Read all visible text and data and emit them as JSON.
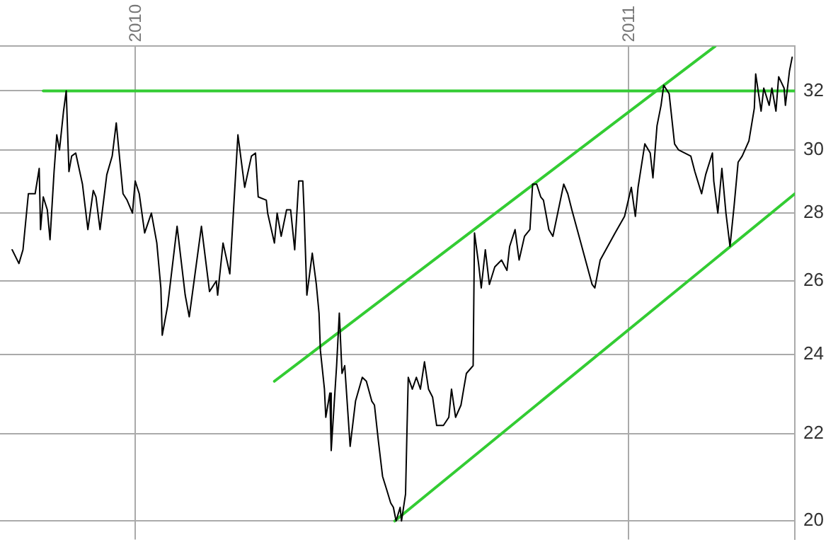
{
  "chart_data": {
    "type": "line",
    "log": "y",
    "grid": true,
    "marker": "none",
    "line_style": "solid",
    "xlim": [
      "2009-09-23",
      "2011-05-04"
    ],
    "xticks": [
      {
        "value": "2010-01-01",
        "label": "2010"
      },
      {
        "value": "2011-01-01",
        "label": "2011"
      }
    ],
    "ylim": [
      19.6,
      33.6
    ],
    "yticks": [
      20,
      22,
      24,
      26,
      28,
      30,
      32
    ],
    "series": [
      {
        "color": "#000000",
        "x": [
          "2009-10-02",
          "2009-10-07",
          "2009-10-10",
          "2009-10-14",
          "2009-10-19",
          "2009-10-22",
          "2009-10-23",
          "2009-10-25",
          "2009-10-28",
          "2009-10-30",
          "2009-11-02",
          "2009-11-04",
          "2009-11-06",
          "2009-11-09",
          "2009-11-11",
          "2009-11-13",
          "2009-11-15",
          "2009-11-18",
          "2009-11-23",
          "2009-11-27",
          "2009-12-01",
          "2009-12-03",
          "2009-12-06",
          "2009-12-11",
          "2009-12-15",
          "2009-12-18",
          "2009-12-23",
          "2009-12-26",
          "2009-12-30",
          "2010-01-01",
          "2010-01-04",
          "2010-01-08",
          "2010-01-13",
          "2010-01-17",
          "2010-01-20",
          "2010-01-21",
          "2010-01-25",
          "2010-02-01",
          "2010-02-07",
          "2010-02-10",
          "2010-02-19",
          "2010-02-25",
          "2010-03-02",
          "2010-03-03",
          "2010-03-07",
          "2010-03-12",
          "2010-03-18",
          "2010-03-23",
          "2010-03-28",
          "2010-03-31",
          "2010-04-02",
          "2010-04-08",
          "2010-04-09",
          "2010-04-14",
          "2010-04-16",
          "2010-04-19",
          "2010-04-23",
          "2010-04-26",
          "2010-04-29",
          "2010-05-02",
          "2010-05-05",
          "2010-05-06",
          "2010-05-08",
          "2010-05-12",
          "2010-05-15",
          "2010-05-17",
          "2010-05-18",
          "2010-05-21",
          "2010-05-22",
          "2010-05-25",
          "2010-05-26",
          "2010-05-30",
          "2010-06-01",
          "2010-06-03",
          "2010-06-05",
          "2010-06-09",
          "2010-06-13",
          "2010-06-18",
          "2010-06-21",
          "2010-06-25",
          "2010-06-27",
          "2010-06-30",
          "2010-07-03",
          "2010-07-06",
          "2010-07-09",
          "2010-07-11",
          "2010-07-13",
          "2010-07-16",
          "2010-07-17",
          "2010-07-20",
          "2010-07-21",
          "2010-07-22",
          "2010-07-25",
          "2010-07-28",
          "2010-07-31",
          "2010-08-03",
          "2010-08-06",
          "2010-08-09",
          "2010-08-12",
          "2010-08-17",
          "2010-08-21",
          "2010-08-23",
          "2010-08-26",
          "2010-08-30",
          "2010-09-01",
          "2010-09-03",
          "2010-09-08",
          "2010-09-09",
          "2010-09-12",
          "2010-09-14",
          "2010-09-17",
          "2010-09-20",
          "2010-09-24",
          "2010-09-29",
          "2010-10-03",
          "2010-10-05",
          "2010-10-09",
          "2010-10-12",
          "2010-10-16",
          "2010-10-20",
          "2010-10-22",
          "2010-10-25",
          "2010-10-28",
          "2010-10-30",
          "2010-11-03",
          "2010-11-06",
          "2010-11-14",
          "2010-11-17",
          "2010-11-20",
          "2010-11-24",
          "2010-12-05",
          "2010-12-07",
          "2010-12-11",
          "2010-12-22",
          "2010-12-29",
          "2011-01-03",
          "2011-01-06",
          "2011-01-08",
          "2011-01-13",
          "2011-01-17",
          "2011-01-19",
          "2011-01-22",
          "2011-01-25",
          "2011-01-27",
          "2011-01-31",
          "2011-02-04",
          "2011-02-07",
          "2011-02-16",
          "2011-02-19",
          "2011-02-24",
          "2011-02-27",
          "2011-03-04",
          "2011-03-05",
          "2011-03-08",
          "2011-03-11",
          "2011-03-14",
          "2011-03-17",
          "2011-03-20",
          "2011-03-23",
          "2011-03-26",
          "2011-03-31",
          "2011-04-04",
          "2011-04-05",
          "2011-04-09",
          "2011-04-11",
          "2011-04-15",
          "2011-04-17",
          "2011-04-20",
          "2011-04-22",
          "2011-04-26",
          "2011-04-27",
          "2011-04-30",
          "2011-05-02"
        ],
        "values": [
          26.9,
          26.5,
          26.9,
          28.6,
          28.6,
          29.4,
          27.5,
          28.5,
          28.1,
          27.2,
          29.3,
          30.5,
          30.0,
          31.3,
          32.0,
          29.3,
          29.8,
          29.9,
          28.9,
          27.5,
          28.7,
          28.5,
          27.5,
          29.2,
          29.8,
          30.9,
          28.6,
          28.4,
          28.0,
          29.0,
          28.6,
          27.4,
          28.0,
          27.1,
          25.8,
          24.5,
          25.3,
          27.6,
          25.6,
          25.0,
          27.6,
          25.7,
          26.0,
          25.6,
          27.1,
          26.2,
          30.5,
          28.8,
          29.8,
          29.9,
          28.5,
          28.4,
          28.0,
          27.1,
          28.0,
          27.3,
          28.1,
          28.1,
          26.9,
          29.0,
          29.0,
          28.0,
          25.6,
          26.8,
          25.9,
          25.1,
          24.1,
          23.1,
          22.4,
          23.0,
          21.6,
          23.7,
          25.1,
          23.5,
          23.7,
          21.7,
          22.8,
          23.4,
          23.3,
          22.8,
          22.7,
          21.8,
          21.0,
          20.7,
          20.4,
          20.3,
          20.0,
          20.3,
          20.0,
          20.6,
          22.0,
          23.4,
          23.1,
          23.4,
          23.1,
          23.8,
          23.1,
          22.9,
          22.2,
          22.2,
          22.4,
          23.1,
          22.4,
          22.7,
          23.1,
          23.5,
          23.7,
          27.4,
          26.5,
          25.8,
          26.9,
          25.9,
          26.4,
          26.6,
          26.3,
          27.0,
          27.5,
          26.6,
          27.3,
          27.5,
          28.9,
          28.9,
          28.5,
          28.4,
          27.5,
          27.3,
          28.9,
          28.6,
          28.1,
          27.5,
          25.9,
          25.8,
          26.6,
          27.4,
          27.9,
          28.8,
          27.9,
          28.8,
          30.2,
          29.9,
          29.1,
          30.8,
          31.5,
          32.2,
          31.9,
          30.2,
          30.0,
          29.8,
          29.3,
          28.6,
          29.2,
          29.9,
          29.0,
          28.0,
          29.4,
          28.0,
          27.0,
          28.2,
          29.6,
          29.8,
          30.3,
          31.4,
          32.6,
          31.3,
          32.1,
          31.5,
          32.1,
          31.3,
          32.5,
          32.1,
          31.5,
          32.7,
          33.2
        ]
      },
      {
        "color": "#33cc33",
        "x": [
          "2009-10-25",
          "2011-05-04"
        ],
        "values": [
          32,
          32
        ]
      },
      {
        "color": "#33cc33",
        "x": [
          "2010-04-14",
          "2011-03-06"
        ],
        "values": [
          23.3,
          33.6
        ]
      },
      {
        "color": "#33cc33",
        "x": [
          "2010-07-12",
          "2011-05-04"
        ],
        "values": [
          20.0,
          28.6
        ]
      }
    ]
  }
}
